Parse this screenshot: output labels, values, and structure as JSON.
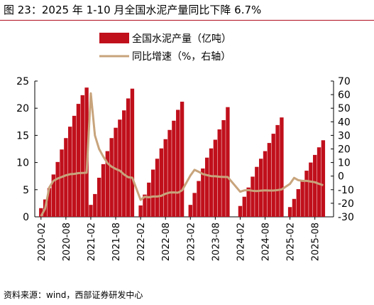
{
  "figure": {
    "title": "图 23：2025 年 1-10 月全国水泥产量同比下降 6.7%",
    "source": "资料来源：wind，西部证券研发中心"
  },
  "colors": {
    "bar": "#c0101c",
    "line": "#c8a47c",
    "title_rule": "#b01020",
    "axis": "#000000"
  },
  "chart_data": {
    "type": "bar+line",
    "x_tick_labels": [
      "2020-02",
      "2020-08",
      "2021-02",
      "2021-08",
      "2022-02",
      "2022-08",
      "2023-02",
      "2023-08",
      "2024-02",
      "2024-08",
      "2025-02",
      "2025-08"
    ],
    "left_axis": {
      "ylim": [
        0,
        25
      ],
      "ticks": [
        "0",
        "5",
        "10",
        "15",
        "20",
        "25"
      ]
    },
    "right_axis": {
      "ylim": [
        -30,
        70
      ],
      "ticks": [
        "-30",
        "-20",
        "-10",
        "0",
        "10",
        "20",
        "30",
        "40",
        "50",
        "60",
        "70"
      ]
    },
    "legend": {
      "placement": "top-center"
    },
    "series": [
      {
        "name": "全国水泥产量（亿吨）",
        "type": "bar",
        "axis": "left",
        "values": [
          1.6,
          3.2,
          5.3,
          7.8,
          10.1,
          12.4,
          14.5,
          16.6,
          18.6,
          20.8,
          22.4,
          23.8,
          2.2,
          4.2,
          7.2,
          9.7,
          12.1,
          14.5,
          16.4,
          17.9,
          19.6,
          21.8,
          23.6,
          2.1,
          4.1,
          6.3,
          8.7,
          10.7,
          12.6,
          14.3,
          16.0,
          17.7,
          19.7,
          21.2,
          2.2,
          4.4,
          6.6,
          8.9,
          10.9,
          12.6,
          14.2,
          16.1,
          17.8,
          20.2,
          2.0,
          3.7,
          5.4,
          7.4,
          9.2,
          10.7,
          12.1,
          13.6,
          15.3,
          16.9,
          18.3,
          1.8,
          3.3,
          5.1,
          6.8,
          8.5,
          10.0,
          11.4,
          12.8,
          14.1
        ]
      },
      {
        "name": "同比增速（%，右轴）",
        "type": "line",
        "axis": "right",
        "values": [
          -29.5,
          -23.9,
          -8.3,
          -3.5,
          -1.8,
          -0.6,
          0.6,
          1.4,
          1.6,
          2.2,
          2.3,
          2.5,
          61,
          29.9,
          20,
          14.4,
          9.6,
          7,
          5.3,
          4,
          1.2,
          -0.8,
          -1.2,
          -17.5,
          -15.2,
          -15.6,
          -15,
          -15,
          -14.5,
          -13,
          -12.1,
          -12,
          -12.2,
          -10.5,
          0.4,
          4.6,
          3.2,
          1.5,
          0.7,
          0,
          -0.1,
          -0.5,
          -0.6,
          -0.7,
          -11.5,
          -10.5,
          -10.3,
          -10.8,
          -11,
          -10.7,
          -10.5,
          -10.6,
          -10.6,
          -10.3,
          -9.8,
          -5.7,
          -1.3,
          -3,
          -3.5,
          -3.5,
          -4,
          -4.5,
          -5.7,
          -6.7
        ]
      }
    ],
    "groups": [
      {
        "start_month": 2,
        "count": 12
      },
      {
        "start_month": 2,
        "count": 11
      },
      {
        "start_month": 2,
        "count": 11
      },
      {
        "start_month": 2,
        "count": 10
      },
      {
        "start_month": 2,
        "count": 11
      },
      {
        "start_month": 2,
        "count": 9
      }
    ]
  }
}
